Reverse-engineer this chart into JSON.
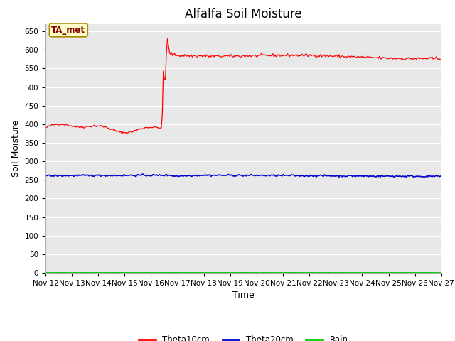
{
  "title": "Alfalfa Soil Moisture",
  "xlabel": "Time",
  "ylabel": "Soil Moisture",
  "ylim": [
    0,
    670
  ],
  "yticks": [
    0,
    50,
    100,
    150,
    200,
    250,
    300,
    350,
    400,
    450,
    500,
    550,
    600,
    650
  ],
  "x_labels": [
    "Nov 12",
    "Nov 13",
    "Nov 14",
    "Nov 15",
    "Nov 16",
    "Nov 17",
    "Nov 18",
    "Nov 19",
    "Nov 20",
    "Nov 21",
    "Nov 22",
    "Nov 23",
    "Nov 24",
    "Nov 25",
    "Nov 26",
    "Nov 27"
  ],
  "annotation_text": "TA_met",
  "annotation_bg": "#ffffcc",
  "annotation_border": "#aa8800",
  "annotation_text_color": "#880000",
  "line_colors": {
    "theta10": "#ff0000",
    "theta20": "#0000cc",
    "rain": "#00cc00"
  },
  "legend_labels": [
    "Theta10cm",
    "Theta20cm",
    "Rain"
  ],
  "plot_bg_color": "#e8e8e8",
  "fig_bg_color": "#ffffff",
  "grid_color": "#ffffff",
  "title_fontsize": 12,
  "axis_label_fontsize": 9,
  "tick_fontsize": 7.5
}
